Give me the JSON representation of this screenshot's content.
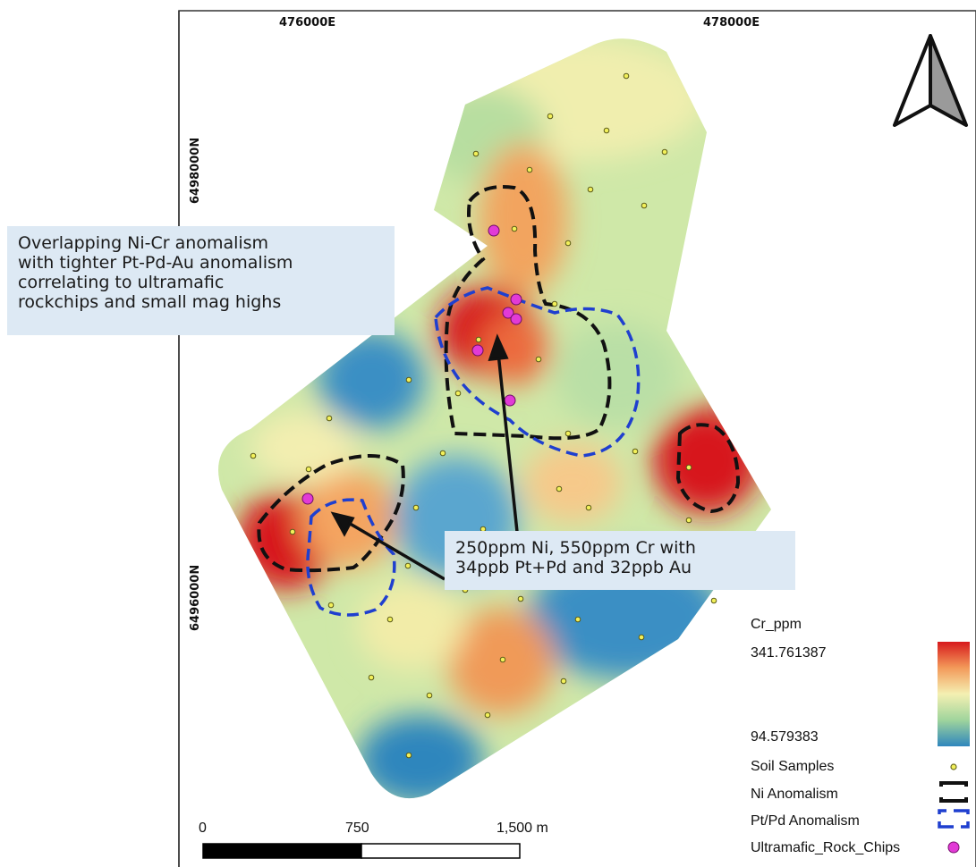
{
  "map": {
    "grid_labels": {
      "easting_1": "476000E",
      "easting_2": "478000E",
      "northing_1": "6498000N",
      "northing_2": "6496000N"
    },
    "north_arrow": "north-arrow-icon"
  },
  "callouts": {
    "top": {
      "lines": [
        "Overlapping Ni-Cr anomalism",
        "with tighter Pt-Pd-Au anomalism",
        "correlating to ultramafic",
        "rockchips and small mag highs"
      ]
    },
    "bottom": {
      "lines": [
        "250ppm Ni, 550ppm Cr with",
        "34ppb Pt+Pd and 32ppb Au"
      ]
    }
  },
  "scale_bar": {
    "label_0": "0",
    "label_mid": "750",
    "label_end": "1,500 m"
  },
  "legend": {
    "title": "Cr_ppm",
    "max_value": "341.761387",
    "min_value": "94.579383",
    "items": [
      {
        "label": "Soil Samples",
        "symbol": "soil-sample-icon"
      },
      {
        "label": "Ni Anomalism",
        "symbol": "ni-anomalism-icon"
      },
      {
        "label": "Pt/Pd Anomalism",
        "symbol": "ptpd-anomalism-icon"
      },
      {
        "label": "Ultramafic_Rock_Chips",
        "symbol": "rock-chip-icon"
      }
    ]
  },
  "colors": {
    "high": "#d7191c",
    "mid_high": "#f5a05a",
    "mid": "#f6f1b4",
    "mid_low": "#a8d9a0",
    "low": "#2f86bd",
    "ni_outline": "#111111",
    "ptpd_outline": "#1f3fcf",
    "rock_chip": "#e23ad6",
    "soil_sample": "#f2f05a"
  }
}
